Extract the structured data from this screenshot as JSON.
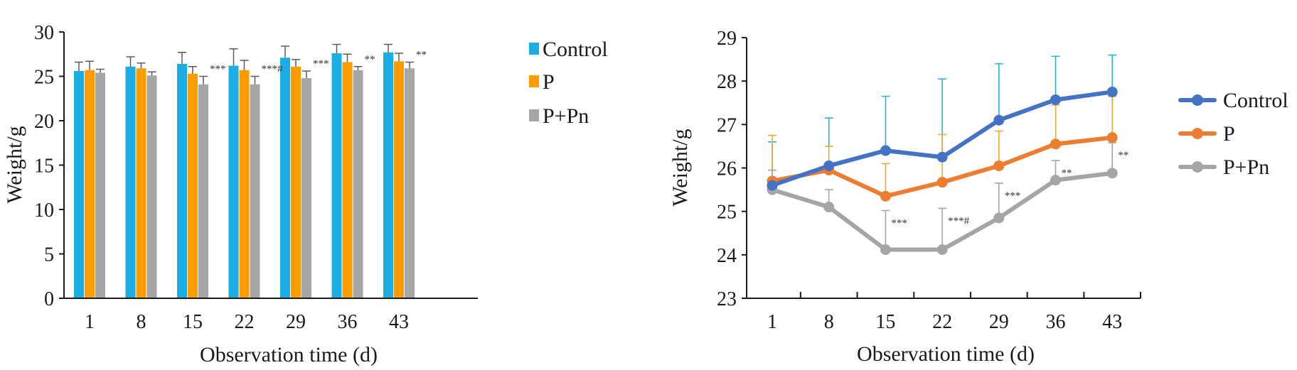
{
  "chart_data": [
    {
      "type": "bar",
      "categories": [
        "1",
        "8",
        "15",
        "22",
        "29",
        "36",
        "43"
      ],
      "xlabel": "Observation time (d)",
      "ylabel": "Weight/g",
      "ylim": [
        0,
        30
      ],
      "yticks": [
        "0",
        "5",
        "10",
        "15",
        "20",
        "25",
        "30"
      ],
      "legend_position": "right",
      "grid": false,
      "series": [
        {
          "name": "Control",
          "color": "#1aaee5",
          "values": [
            25.6,
            26.1,
            26.4,
            26.2,
            27.1,
            27.6,
            27.7
          ],
          "errors": [
            1.0,
            1.1,
            1.3,
            1.9,
            1.3,
            1.0,
            0.9
          ]
        },
        {
          "name": "P",
          "color": "#ff9c00",
          "values": [
            25.7,
            25.9,
            25.3,
            25.7,
            26.1,
            26.6,
            26.7
          ],
          "errors": [
            1.0,
            0.6,
            0.8,
            1.1,
            0.8,
            0.9,
            0.9
          ]
        },
        {
          "name": "P+Pn",
          "color": "#a6a6a6",
          "values": [
            25.4,
            25.1,
            24.1,
            24.1,
            24.8,
            25.7,
            25.9
          ],
          "errors": [
            0.4,
            0.4,
            0.9,
            0.9,
            0.8,
            0.4,
            0.7
          ]
        }
      ],
      "annotations": [
        "",
        "",
        "***",
        "***#",
        "***",
        "**",
        "**"
      ]
    },
    {
      "type": "line",
      "categories": [
        "1",
        "8",
        "15",
        "22",
        "29",
        "36",
        "43"
      ],
      "xlabel": "Observation time (d)",
      "ylabel": "Weight/g",
      "ylim": [
        23,
        29
      ],
      "yticks": [
        "23",
        "24",
        "25",
        "26",
        "27",
        "28",
        "29"
      ],
      "legend_position": "right",
      "grid": false,
      "series": [
        {
          "name": "Control",
          "color": "#4472c4",
          "error_color": "#29b2e8",
          "values": [
            25.6,
            26.05,
            26.4,
            26.25,
            27.1,
            27.57,
            27.75
          ],
          "errors": [
            1.0,
            1.1,
            1.25,
            1.8,
            1.3,
            1.0,
            0.85
          ]
        },
        {
          "name": "P",
          "color": "#ed7d31",
          "error_color": "#f0a830",
          "values": [
            25.7,
            25.95,
            25.35,
            25.67,
            26.05,
            26.55,
            26.7
          ],
          "errors": [
            1.05,
            0.55,
            0.75,
            1.1,
            0.8,
            0.9,
            0.95
          ]
        },
        {
          "name": "P+Pn",
          "color": "#a5a5a5",
          "error_color": "#a5a5a5",
          "values": [
            25.5,
            25.1,
            24.12,
            24.12,
            24.85,
            25.72,
            25.88
          ],
          "errors": [
            0.45,
            0.4,
            0.9,
            0.95,
            0.8,
            0.45,
            0.7
          ]
        }
      ],
      "annotations": [
        "",
        "",
        "***",
        "***#",
        "***",
        "**",
        "**"
      ]
    }
  ]
}
